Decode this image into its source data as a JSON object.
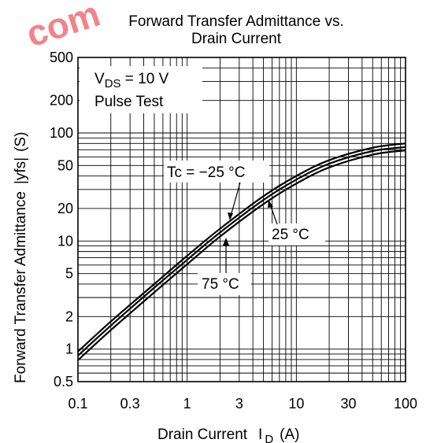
{
  "watermark": "com",
  "chart_data": {
    "type": "line",
    "title_line1": "Forward Transfer Admittance vs.",
    "title_line2": "Drain Current",
    "xlabel": "Drain Current",
    "xlabel_symbol": "I",
    "xlabel_subscript": "D",
    "xlabel_unit": "(A)",
    "ylabel": "Forward Transfer Admittance",
    "ylabel_symbol": "|yfs|",
    "ylabel_unit": "(S)",
    "x_scale": "log",
    "y_scale": "log",
    "xlim": [
      0.1,
      100
    ],
    "ylim": [
      0.5,
      500
    ],
    "grid": true,
    "x_tick_labels": [
      "0.1",
      "0.3",
      "1",
      "3",
      "10",
      "30",
      "100"
    ],
    "x_tick_values": [
      0.1,
      0.3,
      1,
      3,
      10,
      30,
      100
    ],
    "y_tick_labels": [
      "0.5",
      "1",
      "2",
      "5",
      "10",
      "20",
      "50",
      "100",
      "200",
      "500"
    ],
    "y_tick_values": [
      0.5,
      1,
      2,
      5,
      10,
      20,
      50,
      100,
      200,
      500
    ],
    "conditions": {
      "vds_prefix": "V",
      "vds_sub": "DS",
      "vds_value": " = 10 V",
      "pulse": "Pulse Test"
    },
    "series": [
      {
        "name": "Tc = −25 °C",
        "x": [
          0.1,
          0.2,
          0.5,
          1,
          2,
          5,
          10,
          20,
          50,
          100
        ],
        "y": [
          0.95,
          1.8,
          4.0,
          7.3,
          13.0,
          26.0,
          40.0,
          56.0,
          73.0,
          80.0
        ]
      },
      {
        "name": "25 °C",
        "x": [
          0.1,
          0.2,
          0.5,
          1,
          2,
          5,
          10,
          20,
          50,
          100
        ],
        "y": [
          0.87,
          1.65,
          3.7,
          6.7,
          12.0,
          24.0,
          37.0,
          52.0,
          68.0,
          74.0
        ]
      },
      {
        "name": "75 °C",
        "x": [
          0.1,
          0.2,
          0.5,
          1,
          2,
          5,
          10,
          20,
          50,
          100
        ],
        "y": [
          0.79,
          1.5,
          3.35,
          6.1,
          11.0,
          22.0,
          34.0,
          48.0,
          63.0,
          69.0
        ]
      }
    ],
    "annotations": {
      "minus25": "Tc = −25 °C",
      "t25": "25 °C",
      "t75": "75 °C"
    }
  }
}
